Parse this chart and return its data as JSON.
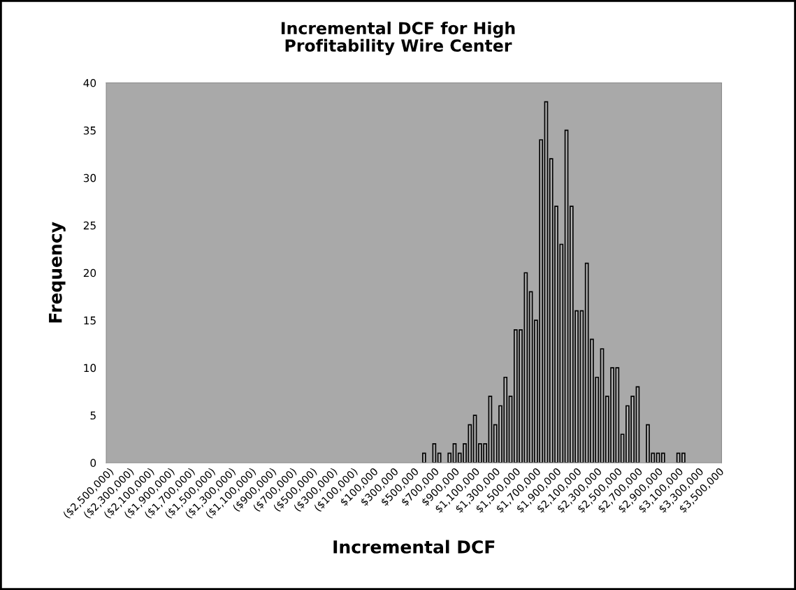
{
  "chart_data": {
    "type": "bar",
    "title": "Incremental DCF for High\nProfitability Wire Center",
    "xlabel": "Incremental DCF",
    "ylabel": "Frequency",
    "categories": [
      "($2,500,000)",
      null,
      null,
      null,
      "($2,300,000)",
      null,
      null,
      null,
      "($2,100,000)",
      null,
      null,
      null,
      "($1,900,000)",
      null,
      null,
      null,
      "($1,700,000)",
      null,
      null,
      null,
      "($1,500,000)",
      null,
      null,
      null,
      "($1,300,000)",
      null,
      null,
      null,
      "($1,100,000)",
      null,
      null,
      null,
      "($900,000)",
      null,
      null,
      null,
      "($700,000)",
      null,
      null,
      null,
      "($500,000)",
      null,
      null,
      null,
      "($300,000)",
      null,
      null,
      null,
      "($100,000)",
      null,
      null,
      null,
      "$100,000",
      null,
      null,
      null,
      "$300,000",
      null,
      null,
      null,
      "$500,000",
      null,
      null,
      null,
      "$700,000",
      null,
      null,
      null,
      "$900,000",
      null,
      null,
      null,
      "$1,100,000",
      null,
      null,
      null,
      "$1,300,000",
      null,
      null,
      null,
      "$1,500,000",
      null,
      null,
      null,
      "$1,700,000",
      null,
      null,
      null,
      "$1,900,000",
      null,
      null,
      null,
      "$2,100,000",
      null,
      null,
      null,
      "$2,300,000",
      null,
      null,
      null,
      "$2,500,000",
      null,
      null,
      null,
      "$2,700,000",
      null,
      null,
      null,
      "$2,900,000",
      null,
      null,
      null,
      "$3,100,000",
      null,
      null,
      null,
      "$3,300,000",
      null,
      null,
      null,
      "$3,500,000"
    ],
    "values": [
      0,
      0,
      0,
      0,
      0,
      0,
      0,
      0,
      0,
      0,
      0,
      0,
      0,
      0,
      0,
      0,
      0,
      0,
      0,
      0,
      0,
      0,
      0,
      0,
      0,
      0,
      0,
      0,
      0,
      0,
      0,
      0,
      0,
      0,
      0,
      0,
      0,
      0,
      0,
      0,
      0,
      0,
      0,
      0,
      0,
      0,
      0,
      0,
      0,
      0,
      0,
      0,
      0,
      0,
      0,
      0,
      0,
      0,
      0,
      0,
      0,
      0,
      1,
      0,
      2,
      1,
      0,
      1,
      2,
      1,
      2,
      4,
      5,
      2,
      2,
      7,
      4,
      6,
      9,
      7,
      14,
      14,
      20,
      18,
      15,
      34,
      38,
      32,
      27,
      23,
      35,
      27,
      16,
      16,
      21,
      13,
      9,
      12,
      7,
      10,
      10,
      3,
      6,
      7,
      8,
      0,
      4,
      1,
      1,
      1,
      0,
      0,
      1,
      1,
      0,
      0,
      0,
      0,
      0,
      0,
      0
    ],
    "color": "#b4b4b4",
    "ylim": [
      0,
      40
    ],
    "yticks": [
      0,
      5,
      10,
      15,
      20,
      25,
      30,
      35,
      40
    ],
    "grid": false,
    "legend": false
  }
}
